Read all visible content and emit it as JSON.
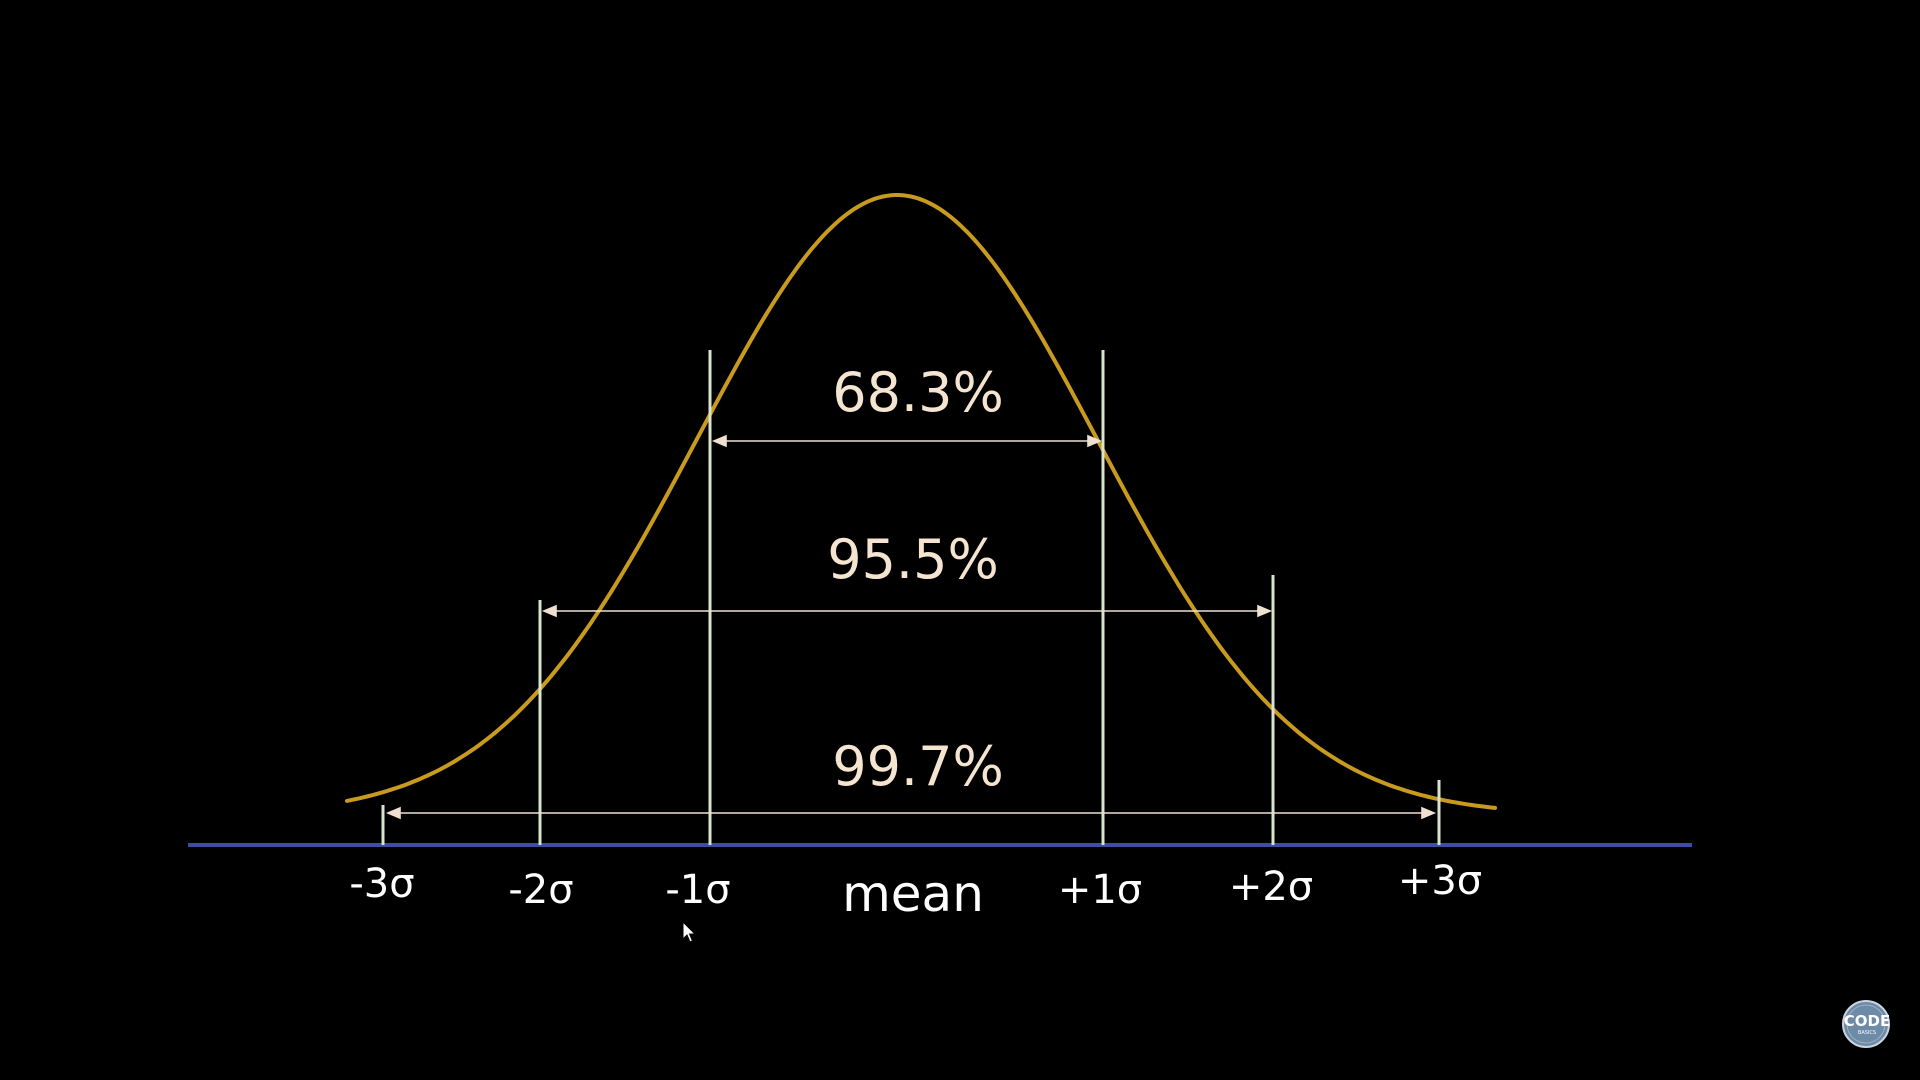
{
  "diagram": {
    "curve_color": "#c89a1e",
    "baseline_color": "#3a4fa0",
    "sigma_line_color": "#d8e4cc",
    "arrow_color": "#f0e0d0",
    "intervals": [
      {
        "label": "68.3%",
        "from": "-1σ",
        "to": "+1σ"
      },
      {
        "label": "95.5%",
        "from": "-2σ",
        "to": "+2σ"
      },
      {
        "label": "99.7%",
        "from": "-3σ",
        "to": "+3σ"
      }
    ],
    "axis_labels": {
      "m3": "-3σ",
      "m2": "-2σ",
      "m1": "-1σ",
      "mean": "mean",
      "p1": "+1σ",
      "p2": "+2σ",
      "p3": "+3σ"
    }
  },
  "logo": {
    "text": "CODE",
    "subtext": "BASICS",
    "icon": "codebasics-logo"
  },
  "cursor": {
    "icon": "mouse-pointer-icon"
  }
}
